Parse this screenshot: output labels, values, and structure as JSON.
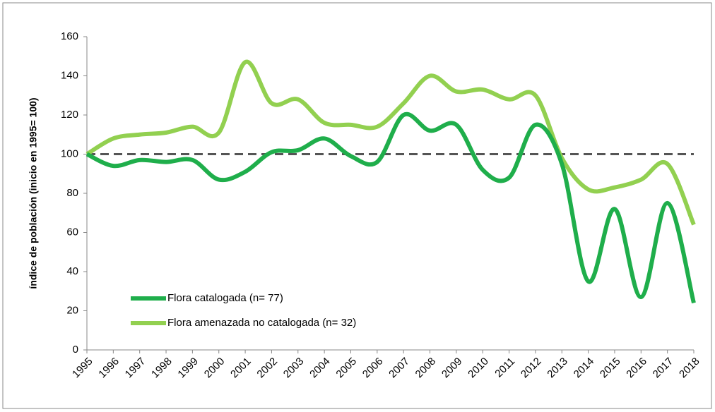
{
  "chart_data": {
    "type": "line",
    "y_label": "índice de población  (inicio en 1995= 100)",
    "categories": [
      "1995",
      "1996",
      "1997",
      "1998",
      "1999",
      "2000",
      "2001",
      "2002",
      "2003",
      "2004",
      "2005",
      "2006",
      "2007",
      "2008",
      "2009",
      "2010",
      "2011",
      "2012",
      "2013",
      "2014",
      "2015",
      "2016",
      "2017",
      "2018"
    ],
    "series": [
      {
        "name": "Flora catalogada  (n= 77)",
        "color": "#1fae4b",
        "values": [
          100,
          94,
          97,
          96,
          97,
          87,
          91,
          101,
          102,
          108,
          99,
          96,
          120,
          112,
          115,
          92,
          88,
          115,
          95,
          35,
          72,
          27,
          75,
          24
        ]
      },
      {
        "name": "Flora amenazada  no catalogada  (n= 32)",
        "color": "#92d050",
        "values": [
          100,
          108,
          110,
          111,
          114,
          111,
          147,
          126,
          128,
          116,
          115,
          114,
          126,
          140,
          132,
          133,
          128,
          130,
          98,
          82,
          83,
          87,
          95,
          64
        ]
      }
    ],
    "reference_line": 100,
    "ylim": [
      0,
      160
    ],
    "yticks": [
      0,
      20,
      40,
      60,
      80,
      100,
      120,
      140,
      160
    ],
    "legend": "lower-left",
    "grid": false
  }
}
